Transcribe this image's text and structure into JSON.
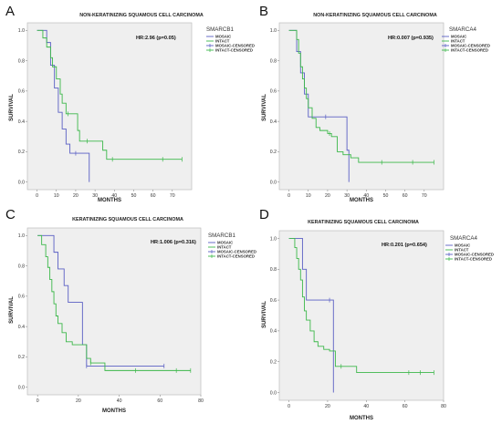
{
  "colors": {
    "mosaic": "#5a5fc4",
    "intact": "#3cb84a",
    "plot_bg": "#efefef",
    "frame": "#bdbdbd"
  },
  "chart_data": [
    {
      "type": "line",
      "panel_label": "A",
      "title": "NON-KERATINIZING SQUAMOUS CELL CARCINOMA",
      "legend_title": "SMARCB1",
      "annotation": "HR:2.96 (p=0.05)",
      "xlabel": "MONTHS",
      "ylabel": "SURVIVAL",
      "xlim": [
        -5,
        80
      ],
      "ylim": [
        -0.05,
        1.05
      ],
      "xticks": [
        0,
        10,
        20,
        30,
        40,
        50,
        60,
        70
      ],
      "yticks": [
        0.0,
        0.2,
        0.4,
        0.6,
        0.8,
        1.0
      ],
      "ytick_labels": [
        "0.0",
        "0.2",
        "0.4",
        "0.6",
        "0.8",
        "1.0"
      ],
      "grid": false,
      "legend_position": "top-right",
      "series": [
        {
          "name": "MOSAIC",
          "color_key": "mosaic",
          "x": [
            0,
            5,
            7,
            9,
            11,
            13,
            15,
            17,
            20,
            27,
            27
          ],
          "y": [
            1.0,
            0.92,
            0.77,
            0.62,
            0.46,
            0.35,
            0.25,
            0.19,
            0.19,
            0.19,
            0.0
          ],
          "censored": [
            [
              20,
              0.19
            ]
          ]
        },
        {
          "name": "INTACT",
          "color_key": "intact",
          "x": [
            0,
            3,
            5,
            7,
            8,
            10,
            12,
            13,
            15,
            19,
            21,
            22,
            27,
            34,
            36,
            75
          ],
          "y": [
            1.0,
            0.95,
            0.89,
            0.82,
            0.76,
            0.68,
            0.58,
            0.52,
            0.45,
            0.45,
            0.34,
            0.27,
            0.27,
            0.21,
            0.15,
            0.15
          ],
          "censored": [
            [
              16,
              0.45
            ],
            [
              26,
              0.27
            ],
            [
              39,
              0.15
            ],
            [
              65,
              0.15
            ],
            [
              75,
              0.15
            ]
          ]
        }
      ],
      "legend": [
        "MOSAIC",
        "INTACT",
        "MOSAIC-CENSORED",
        "INTACT-CENSORED"
      ]
    },
    {
      "type": "line",
      "panel_label": "B",
      "title": "NON-KERATINIZING SQUAMOUS CELL CARCINOMA",
      "legend_title": "SMARCA4",
      "annotation": "HR:0.007 (p=0.935)",
      "xlabel": "MONTHS",
      "ylabel": "SURVIVAL",
      "xlim": [
        -5,
        80
      ],
      "ylim": [
        -0.05,
        1.05
      ],
      "xticks": [
        0,
        10,
        20,
        30,
        40,
        50,
        60,
        70
      ],
      "yticks": [
        0.0,
        0.2,
        0.4,
        0.6,
        0.8,
        1.0
      ],
      "ytick_labels": [
        "0.0",
        "0.2",
        "0.4",
        "0.6",
        "0.8",
        "1.0"
      ],
      "grid": false,
      "legend_position": "top-right",
      "series": [
        {
          "name": "MOSAIC",
          "color_key": "mosaic",
          "x": [
            0,
            4,
            6,
            8,
            10,
            12,
            15,
            24,
            30,
            31,
            31
          ],
          "y": [
            1.0,
            0.86,
            0.72,
            0.58,
            0.43,
            0.43,
            0.43,
            0.43,
            0.21,
            0.21,
            0.0
          ],
          "censored": [
            [
              19,
              0.43
            ]
          ]
        },
        {
          "name": "INTACT",
          "color_key": "intact",
          "x": [
            0,
            4,
            5,
            6,
            7,
            8,
            9,
            10,
            12,
            14,
            16,
            20,
            22,
            25,
            28,
            32,
            36,
            75
          ],
          "y": [
            1.0,
            0.94,
            0.85,
            0.76,
            0.68,
            0.62,
            0.55,
            0.49,
            0.42,
            0.36,
            0.34,
            0.32,
            0.3,
            0.2,
            0.18,
            0.16,
            0.13,
            0.13
          ],
          "censored": [
            [
              21,
              0.32
            ],
            [
              48,
              0.13
            ],
            [
              64,
              0.13
            ],
            [
              75,
              0.13
            ]
          ]
        }
      ],
      "legend": [
        "MOSAIC",
        "INTACT",
        "MOSAIC-CENSORED",
        "INTACT-CENSORED"
      ]
    },
    {
      "type": "line",
      "panel_label": "C",
      "title": "KERATINIZING SQUAMOUS CELL CARCINOMA",
      "legend_title": "SMARCB1",
      "annotation": "HR:1.006 (p=0.316)",
      "xlabel": "MONTHS",
      "ylabel": "SURVIVAL",
      "xlim": [
        -5,
        80
      ],
      "ylim": [
        -0.05,
        1.05
      ],
      "xticks": [
        0,
        20,
        40,
        60,
        80
      ],
      "yticks": [
        0.0,
        0.2,
        0.4,
        0.6,
        0.8,
        1.0
      ],
      "ytick_labels": [
        "0.0",
        "0.2",
        "0.4",
        "0.6",
        "0.8",
        "1.0"
      ],
      "grid": false,
      "legend_position": "top-right",
      "series": [
        {
          "name": "MOSAIC",
          "color_key": "mosaic",
          "x": [
            0,
            5,
            8,
            10,
            13,
            15,
            20,
            22,
            24,
            62
          ],
          "y": [
            1.0,
            1.0,
            0.89,
            0.78,
            0.67,
            0.56,
            0.56,
            0.28,
            0.14,
            0.14
          ],
          "censored": [
            [
              24,
              0.14
            ],
            [
              62,
              0.14
            ]
          ]
        },
        {
          "name": "INTACT",
          "color_key": "intact",
          "x": [
            0,
            2,
            4,
            5,
            6,
            7,
            8,
            9,
            10,
            12,
            14,
            17,
            22,
            24,
            26,
            33,
            75
          ],
          "y": [
            1.0,
            0.94,
            0.86,
            0.79,
            0.71,
            0.63,
            0.55,
            0.47,
            0.42,
            0.36,
            0.3,
            0.28,
            0.28,
            0.19,
            0.16,
            0.11,
            0.11
          ],
          "censored": [
            [
              26,
              0.16
            ],
            [
              48,
              0.11
            ],
            [
              68,
              0.11
            ],
            [
              75,
              0.11
            ]
          ]
        }
      ],
      "legend": [
        "MOSAIC",
        "INTACT",
        "MOSAIC-CENSORED",
        "INTACT-CENSORED"
      ]
    },
    {
      "type": "line",
      "panel_label": "D",
      "title": "KERATINIZING SQUAMOUS CELL CARCINOMA",
      "legend_title": "SMARCA4",
      "annotation": "HR:0.201 (p=0.654)",
      "xlabel": "MONTHS",
      "ylabel": "SURVIVAL",
      "xlim": [
        -5,
        80
      ],
      "ylim": [
        -0.05,
        1.05
      ],
      "xticks": [
        0,
        20,
        40,
        60,
        80
      ],
      "yticks": [
        0.0,
        0.2,
        0.4,
        0.6,
        0.8,
        1.0
      ],
      "ytick_labels": [
        "0.0",
        "0.2",
        "0.4",
        "0.6",
        "0.8",
        "1.0"
      ],
      "grid": false,
      "legend_position": "top-right",
      "series": [
        {
          "name": "MOSAIC",
          "color_key": "mosaic",
          "x": [
            0,
            5,
            7,
            9,
            21,
            22,
            23,
            23
          ],
          "y": [
            1.0,
            1.0,
            0.8,
            0.6,
            0.6,
            0.6,
            0.3,
            0.0
          ],
          "censored": [
            [
              21,
              0.6
            ]
          ]
        },
        {
          "name": "INTACT",
          "color_key": "intact",
          "x": [
            0,
            3,
            4,
            5,
            6,
            7,
            8,
            9,
            11,
            13,
            15,
            18,
            21,
            24,
            35,
            75
          ],
          "y": [
            1.0,
            0.94,
            0.87,
            0.8,
            0.73,
            0.62,
            0.53,
            0.47,
            0.4,
            0.33,
            0.3,
            0.28,
            0.27,
            0.17,
            0.13,
            0.13
          ],
          "censored": [
            [
              27,
              0.17
            ],
            [
              62,
              0.13
            ],
            [
              68,
              0.13
            ],
            [
              75,
              0.13
            ]
          ]
        }
      ],
      "legend": [
        "MOSAIC",
        "INTACT",
        "MOSAIC-CENSORED",
        "INTACT-CENSORED"
      ]
    }
  ]
}
